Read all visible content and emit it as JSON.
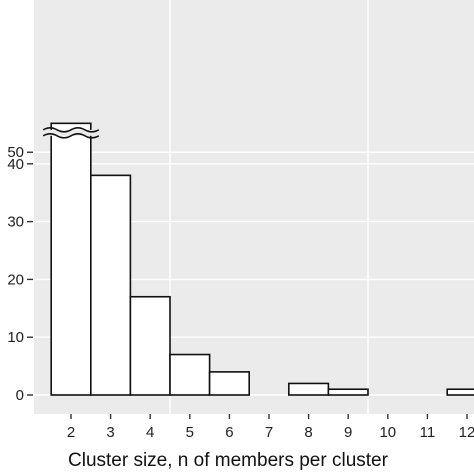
{
  "chart_data": {
    "type": "bar",
    "title": "",
    "xlabel": "Cluster size, n of members per cluster",
    "ylabel": "",
    "categories": [
      "2",
      "3",
      "4",
      "5",
      "6",
      "7",
      "8",
      "9",
      "10",
      "11",
      "12"
    ],
    "values": [
      55,
      38,
      17,
      7,
      4,
      0,
      2,
      1,
      0,
      0,
      1
    ],
    "ylim": [
      0,
      55
    ],
    "axis_break": [
      40,
      50
    ],
    "y_ticks": [
      0,
      10,
      20,
      30,
      40,
      50
    ],
    "y_tick_labels": [
      "0",
      "10",
      "20",
      "30",
      "40",
      "50"
    ],
    "grid": true,
    "legend": "none",
    "colors": {
      "panel": "#ebebeb",
      "grid": "#ffffff",
      "bar_fill": "#ffffff",
      "bar_stroke": "#111111"
    }
  }
}
